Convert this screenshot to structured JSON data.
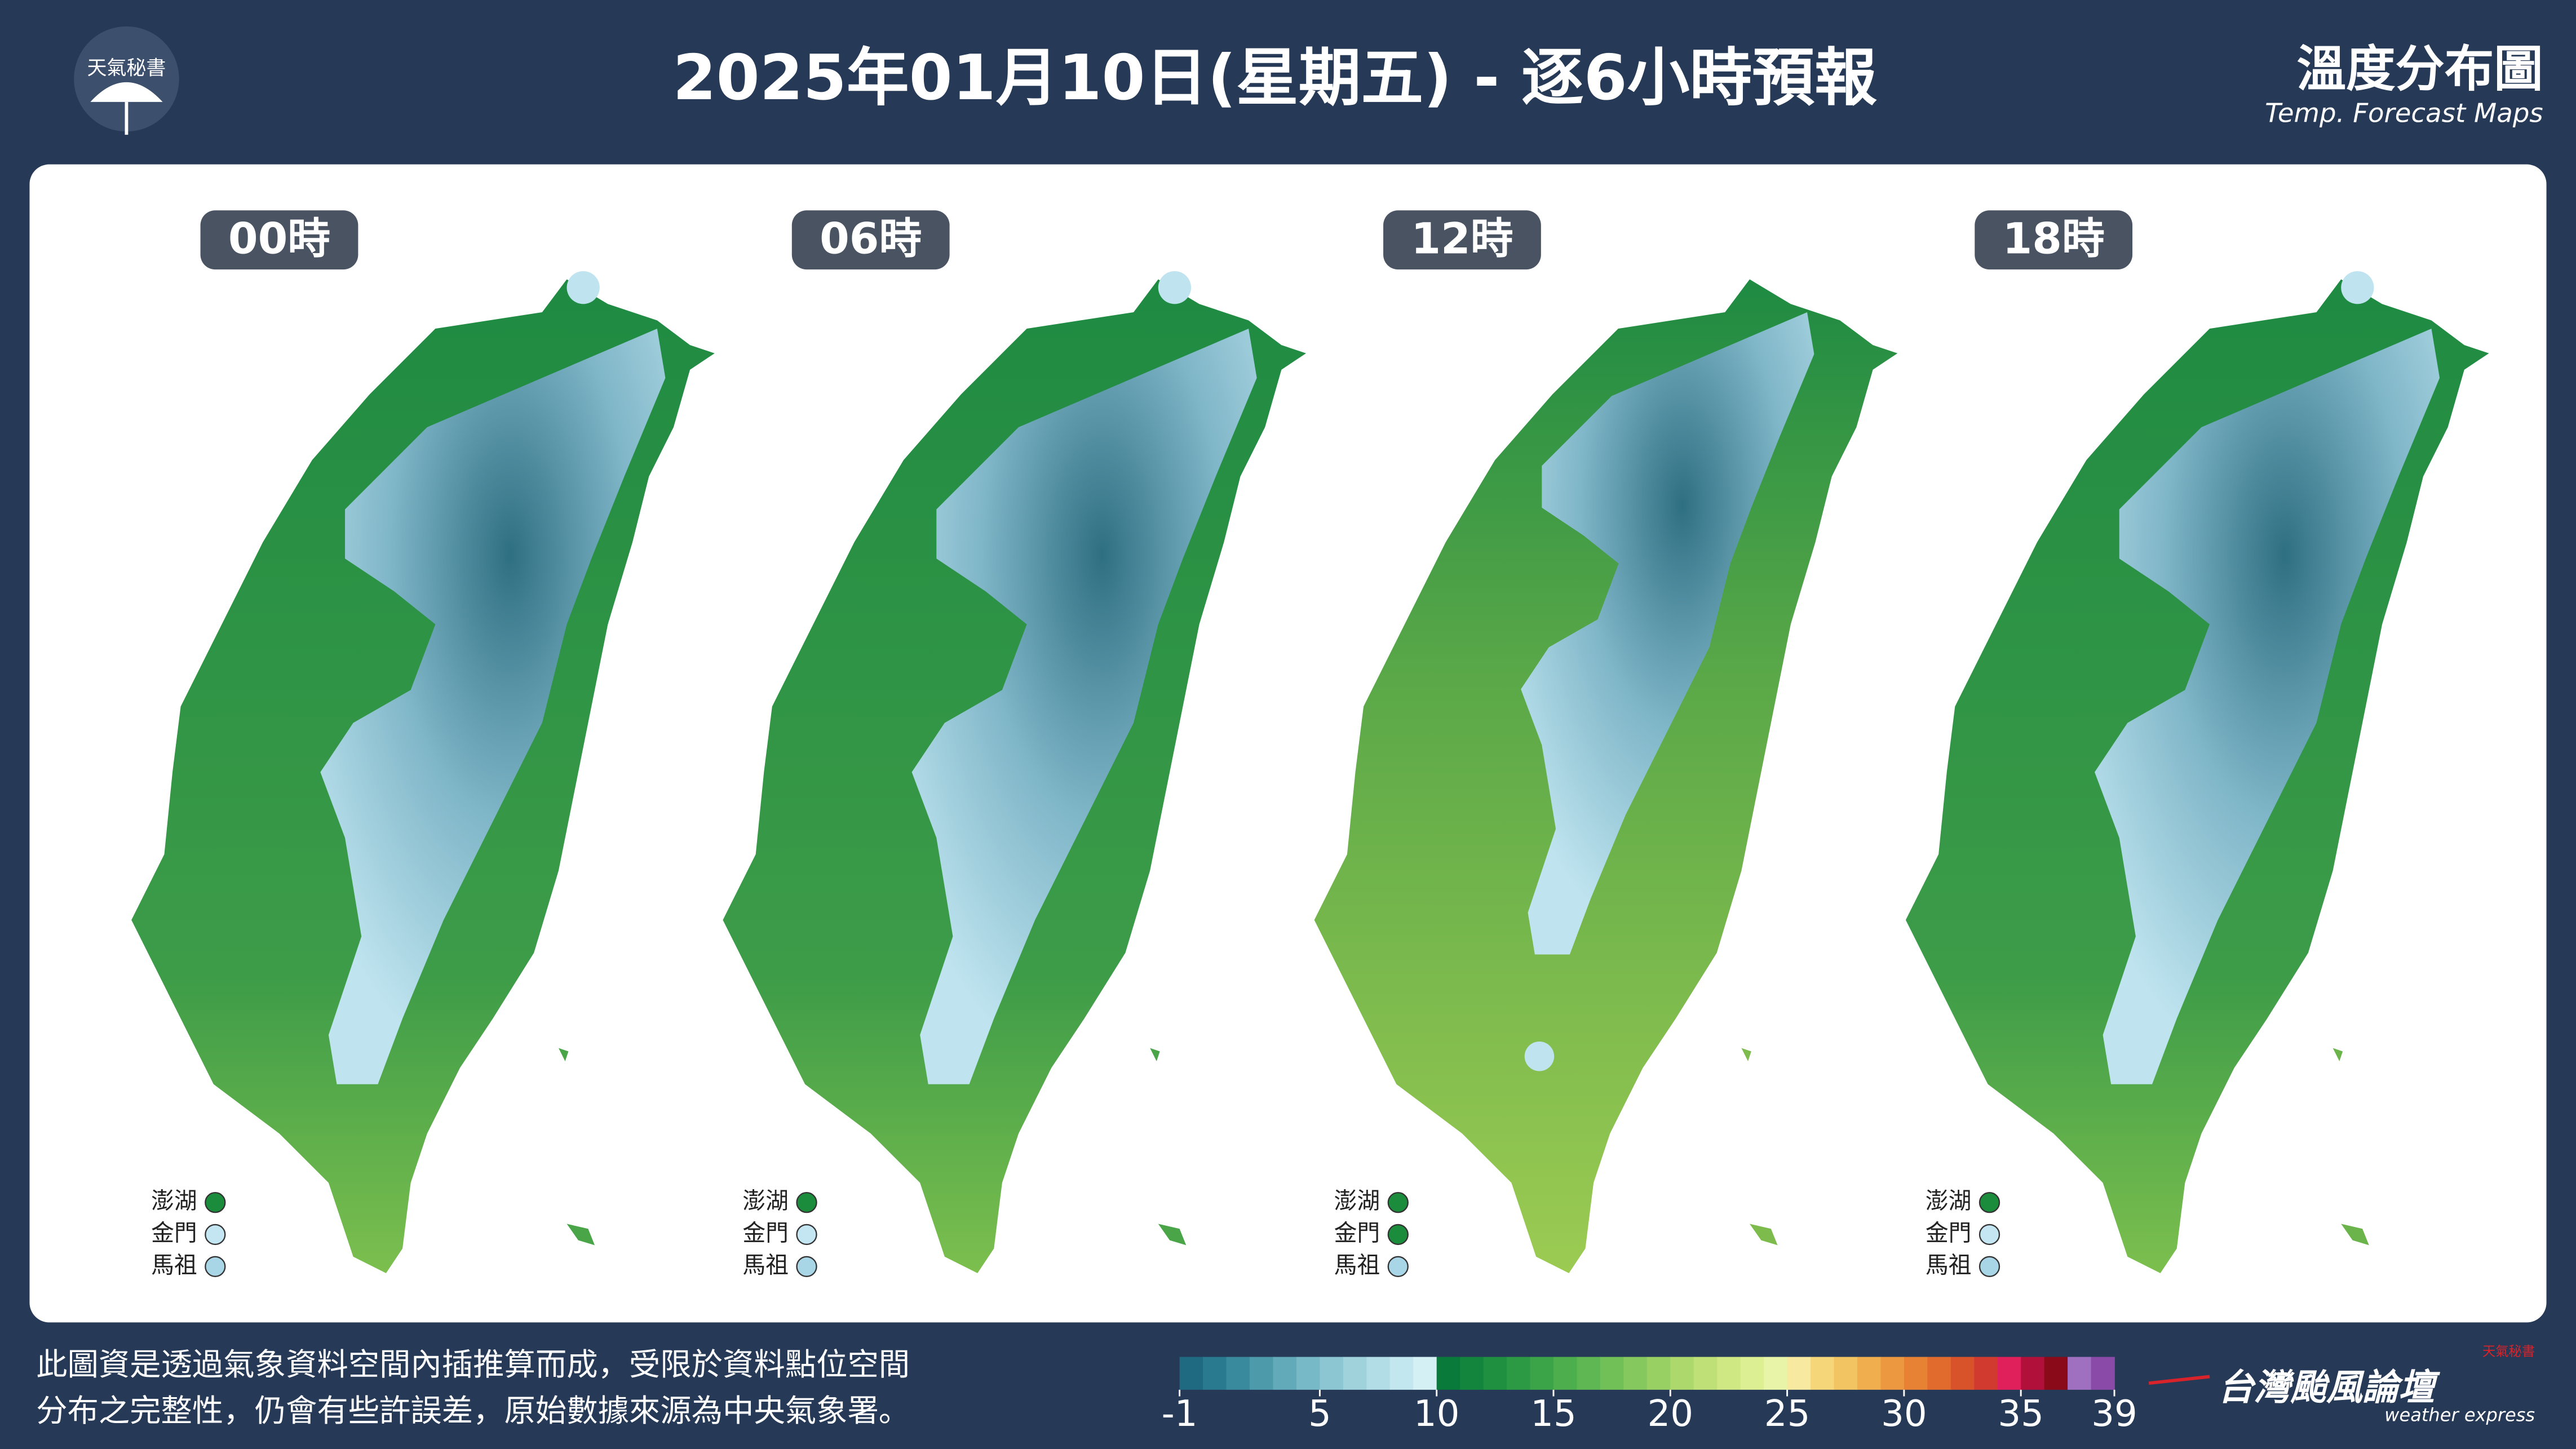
{
  "header": {
    "logo": "天氣秘書",
    "title": "2025年01月10日(星期五) - 逐6小時預報",
    "map_title": "溫度分布圖",
    "map_subtitle": "Temp. Forecast Maps"
  },
  "panels": [
    {
      "label": "00時",
      "islands": [
        {
          "name": "澎湖",
          "color": "#1a8c3c"
        },
        {
          "name": "金門",
          "color": "#c4e6f2"
        },
        {
          "name": "馬祖",
          "color": "#a9d6e6"
        }
      ]
    },
    {
      "label": "06時",
      "islands": [
        {
          "name": "澎湖",
          "color": "#1a8c3c"
        },
        {
          "name": "金門",
          "color": "#c4e6f2"
        },
        {
          "name": "馬祖",
          "color": "#a9d6e6"
        }
      ]
    },
    {
      "label": "12時",
      "islands": [
        {
          "name": "澎湖",
          "color": "#1a8c3c"
        },
        {
          "name": "金門",
          "color": "#1a8c3c"
        },
        {
          "name": "馬祖",
          "color": "#a9d6e6"
        }
      ]
    },
    {
      "label": "18時",
      "islands": [
        {
          "name": "澎湖",
          "color": "#1a8c3c"
        },
        {
          "name": "金門",
          "color": "#c4e6f2"
        },
        {
          "name": "馬祖",
          "color": "#a9d6e6"
        }
      ]
    }
  ],
  "footer": {
    "note": [
      "此圖資是透過氣象資料空間內插推算而成，受限於資料點位空間",
      "分布之完整性，仍會有些許誤差，原始數據來源為中央氣象署。"
    ],
    "colorbar": {
      "range": [
        -1,
        39
      ],
      "ticks": [
        -1,
        5,
        10,
        15,
        20,
        25,
        30,
        35,
        39
      ],
      "colors": [
        "#1f6a80",
        "#2a7a8f",
        "#3a8a9d",
        "#4d9aab",
        "#62aab9",
        "#77b9c6",
        "#8cc6d2",
        "#a0d2dc",
        "#b2dde6",
        "#c3e7ee",
        "#d5f0f4",
        "#0a7a3a",
        "#13853d",
        "#1e9040",
        "#2c9a44",
        "#3ba448",
        "#4cae4d",
        "#5eb752",
        "#71c057",
        "#85c85d",
        "#99d064",
        "#acd86c",
        "#bee076",
        "#cfe883",
        "#dcef93",
        "#e8f5a8",
        "#f7e9a0",
        "#f5d77a",
        "#f3c462",
        "#f0ae4e",
        "#ec9840",
        "#e78235",
        "#e06b2d",
        "#d9532a",
        "#d13a2f",
        "#e0205a",
        "#b0103a",
        "#8a0a1a",
        "#a070c0",
        "#8a4aa8"
      ]
    },
    "brand": "台灣颱風論壇",
    "brand_sub": "weather express",
    "brand_tag": "天氣秘書"
  }
}
